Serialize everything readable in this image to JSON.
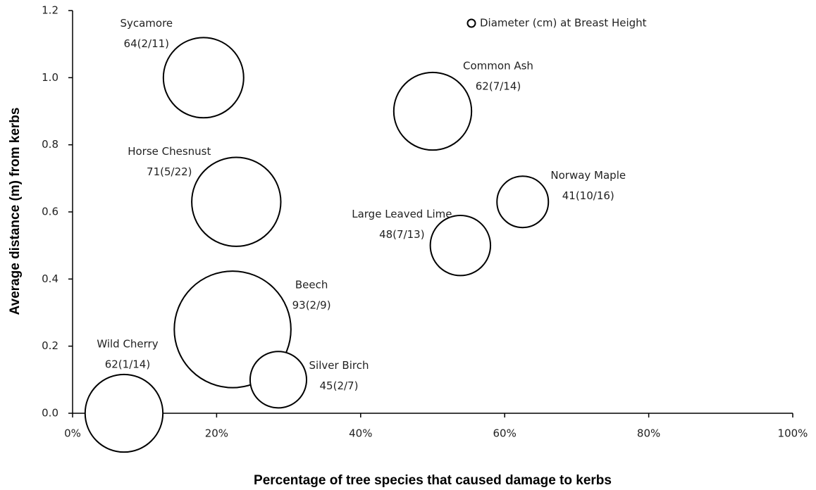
{
  "chart_data": {
    "type": "bubble",
    "xlabel": "Percentage of tree species that caused damage to kerbs",
    "ylabel": "Average distance (m) from kerbs",
    "xlim": [
      0,
      100
    ],
    "xticks": [
      {
        "value": 0,
        "label": "0%"
      },
      {
        "value": 20,
        "label": "20%"
      },
      {
        "value": 40,
        "label": "40%"
      },
      {
        "value": 60,
        "label": "60%"
      },
      {
        "value": 80,
        "label": "80%"
      },
      {
        "value": 100,
        "label": "100%"
      }
    ],
    "ylim": [
      0,
      1.2
    ],
    "yticks": [
      {
        "value": 0,
        "label": "0.0"
      },
      0.2,
      0.4,
      0.6,
      0.8,
      {
        "value": 1,
        "label": "1.0"
      },
      1.2
    ],
    "legend": "upper right",
    "grid": false,
    "point_labels": [
      "Sycamore",
      "Common Ash",
      "Horse Chesnust",
      "Norway Maple",
      "Large Leaved Lime",
      "Beech",
      "Wild Cherry",
      "Silver Birch"
    ],
    "series": [
      {
        "name": "Diameter (cm) at Breast Height",
        "color": "#000000",
        "x": [
          18.18,
          50,
          22.73,
          62.5,
          53.85,
          22.22,
          7.14,
          28.57
        ],
        "values": [
          1.0,
          0.9,
          0.63,
          0.63,
          0.5,
          0.25,
          0.0,
          0.1
        ],
        "sizes": [
          64,
          62,
          71,
          41,
          48,
          93,
          62,
          45
        ],
        "value_labels": [
          "64(2/11)",
          "62(7/14)",
          "71(5/22)",
          "41(10/16)",
          "48(7/13)",
          "93(2/9)",
          "62(1/14)",
          "45(2/7)"
        ]
      }
    ]
  }
}
